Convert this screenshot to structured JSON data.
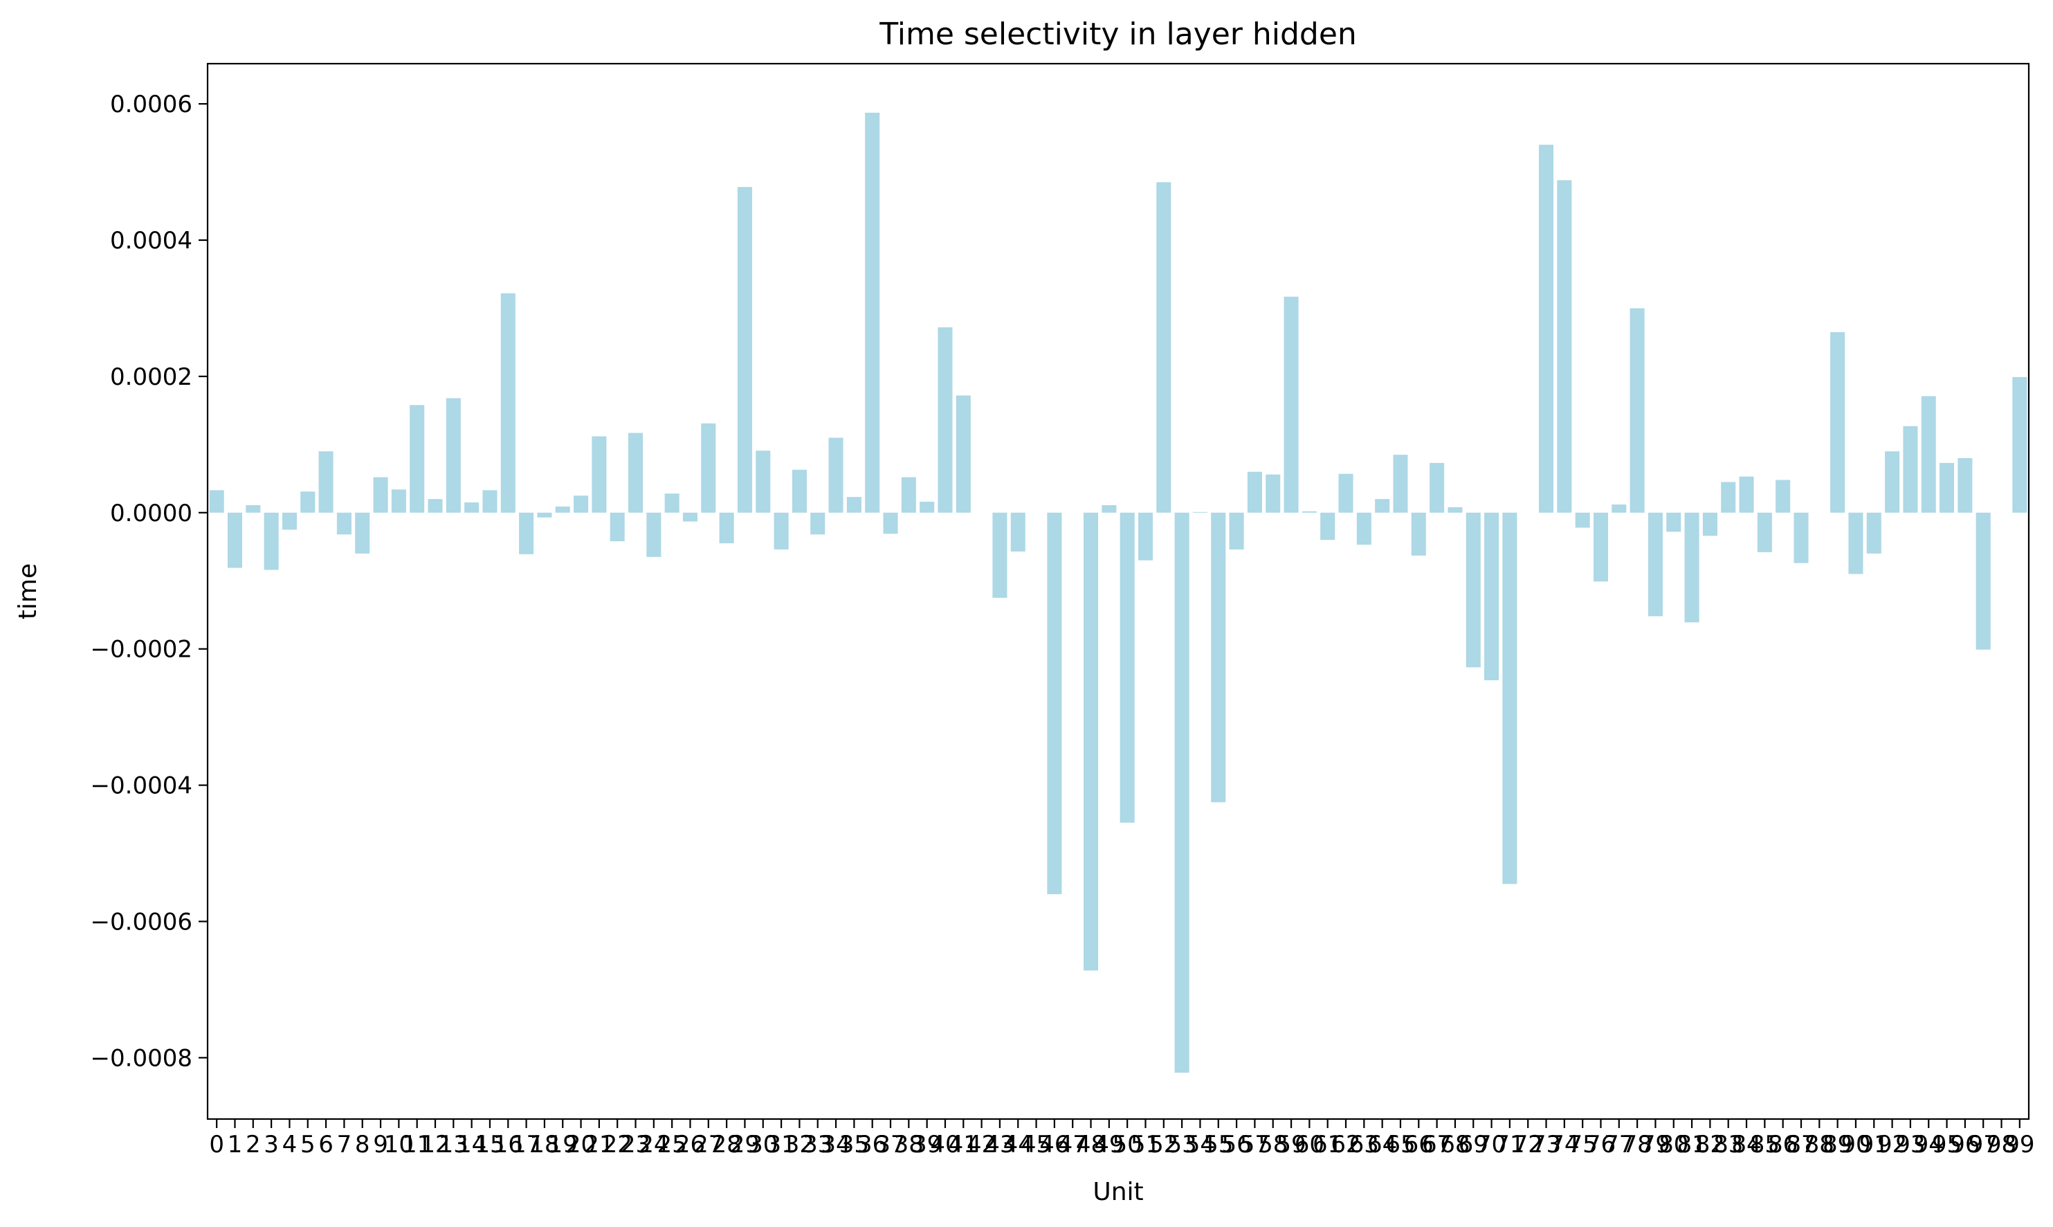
{
  "chart_data": {
    "type": "bar",
    "title": "Time selectivity in layer hidden",
    "xlabel": "Unit",
    "ylabel": "time",
    "ylim": [
      -0.00089,
      0.000659
    ],
    "yticks": [
      -0.0008,
      -0.0006,
      -0.0004,
      -0.0002,
      0.0,
      0.0002,
      0.0004,
      0.0006
    ],
    "ytick_labels": [
      "−0.0008",
      "−0.0006",
      "−0.0004",
      "−0.0002",
      "0.0000",
      "0.0002",
      "0.0004",
      "0.0006"
    ],
    "categories": [
      "0",
      "1",
      "2",
      "3",
      "4",
      "5",
      "6",
      "7",
      "8",
      "9",
      "10",
      "11",
      "12",
      "13",
      "14",
      "15",
      "16",
      "17",
      "18",
      "19",
      "20",
      "21",
      "22",
      "23",
      "24",
      "25",
      "26",
      "27",
      "28",
      "29",
      "30",
      "31",
      "32",
      "33",
      "34",
      "35",
      "36",
      "37",
      "38",
      "39",
      "40",
      "41",
      "42",
      "43",
      "44",
      "45",
      "46",
      "47",
      "48",
      "49",
      "50",
      "51",
      "52",
      "53",
      "54",
      "55",
      "56",
      "57",
      "58",
      "59",
      "60",
      "61",
      "62",
      "63",
      "64",
      "65",
      "66",
      "67",
      "68",
      "69",
      "70",
      "71",
      "72",
      "73",
      "74",
      "75",
      "76",
      "77",
      "78",
      "79",
      "80",
      "81",
      "82",
      "83",
      "84",
      "85",
      "86",
      "87",
      "88",
      "89",
      "90",
      "91",
      "92",
      "93",
      "94",
      "95",
      "96",
      "97",
      "98",
      "99"
    ],
    "values": [
      3.3e-05,
      -8.1e-05,
      1.1e-05,
      -8.4e-05,
      -2.5e-05,
      3.1e-05,
      9e-05,
      -3.2e-05,
      -6e-05,
      5.2e-05,
      3.4e-05,
      0.000158,
      2e-05,
      0.000168,
      1.5e-05,
      3.3e-05,
      0.000322,
      -6.1e-05,
      -7e-06,
      9e-06,
      2.5e-05,
      0.000112,
      -4.2e-05,
      0.000117,
      -6.5e-05,
      2.8e-05,
      -1.3e-05,
      0.000131,
      -4.5e-05,
      0.000478,
      9.1e-05,
      -5.4e-05,
      6.3e-05,
      -3.2e-05,
      0.00011,
      2.3e-05,
      0.000587,
      -3.1e-05,
      5.2e-05,
      1.6e-05,
      0.000272,
      0.000172,
      0.0,
      -0.000125,
      -5.7e-05,
      0.0,
      -0.00056,
      0.0,
      -0.000672,
      1.1e-05,
      -0.000455,
      -7e-05,
      0.000485,
      -0.000822,
      1e-06,
      -0.000425,
      -5.4e-05,
      6e-05,
      5.6e-05,
      0.000317,
      2e-06,
      -4e-05,
      5.7e-05,
      -4.7e-05,
      2e-05,
      8.5e-05,
      -6.3e-05,
      7.3e-05,
      8e-06,
      -0.000227,
      -0.000246,
      -0.000545,
      0.0,
      0.00054,
      0.000488,
      -2.2e-05,
      -0.000101,
      1.2e-05,
      0.0003,
      -0.000152,
      -2.8e-05,
      -0.000161,
      -3.4e-05,
      4.5e-05,
      5.3e-05,
      -5.8e-05,
      4.8e-05,
      -7.4e-05,
      0.0,
      0.000265,
      -9e-05,
      -6e-05,
      9e-05,
      0.000127,
      0.000171,
      7.3e-05,
      8e-05,
      -0.000201,
      0.0,
      0.000199
    ],
    "bar_color": "#add8e6",
    "grid": false,
    "legend": "none"
  }
}
